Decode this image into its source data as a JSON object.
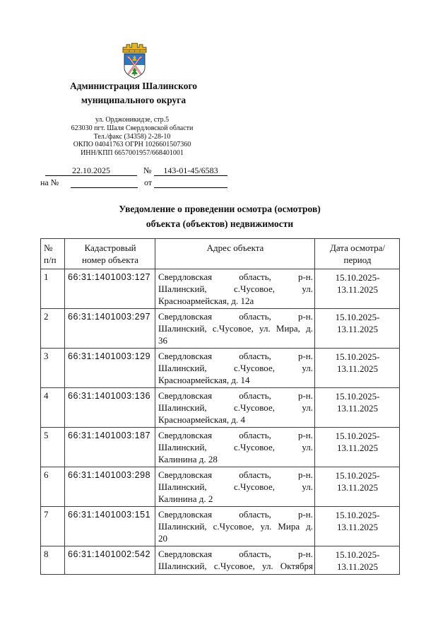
{
  "org": {
    "name_lines": [
      "Администрация Шалинского",
      "муниципального округа"
    ],
    "address_lines": [
      "ул. Орджоникидзе, стр.5",
      "623030 пгт. Шаля Свердловской области",
      "Тел./факс (34358) 2-28-10",
      "ОКПО 04041763 ОГРН 1026601507360",
      "ИНН/КПП 6657001957/668401001"
    ],
    "emblem_colors": {
      "crown": "#e6b41e",
      "crown_outline": "#5d4a05",
      "shield_top": "#2f77c1",
      "shield_bottom": "#ffffff",
      "shield_outline": "#2b2b2b",
      "arrows_red": "#c23326",
      "arrows_white": "#ffffff",
      "fir_green": "#2a8a2a",
      "ornament_gold": "#e6b41e"
    }
  },
  "letter_meta": {
    "date": "22.10.2025",
    "number_label": "№",
    "number": "143-01-45/6583",
    "reply_to_label": "на №",
    "reply_from_label": "от"
  },
  "title_lines": [
    "Уведомление о проведении осмотра (осмотров)",
    "объекта (объектов) недвижимости"
  ],
  "table": {
    "headers": {
      "num_lines": [
        "№",
        "п/п"
      ],
      "cadastral_lines": [
        "Кадастровый",
        "номер объекта"
      ],
      "address": "Адрес объекта",
      "date_lines": [
        "Дата осмотра/",
        "период"
      ]
    },
    "rows": [
      {
        "num": "1",
        "cadastral": "66:31:1401003:127",
        "address_lines": [
          "Свердловская область, р-н.",
          "Шалинский, с.Чусовое, ул.",
          "Красноармейская, д. 12а"
        ],
        "justify_all": false,
        "date_lines": [
          "15.10.2025-",
          "13.11.2025"
        ]
      },
      {
        "num": "2",
        "cadastral": "66:31:1401003:297",
        "address_lines": [
          "Свердловская область, р-н.",
          "Шалинский, с.Чусовое, ул. Мира, д.",
          "36"
        ],
        "justify_all": false,
        "date_lines": [
          "15.10.2025-",
          "13.11.2025"
        ]
      },
      {
        "num": "3",
        "cadastral": "66:31:1401003:129",
        "address_lines": [
          "Свердловская область, р-н.",
          "Шалинский, с.Чусовое, ул.",
          "Красноармейская, д. 14"
        ],
        "justify_all": false,
        "date_lines": [
          "15.10.2025-",
          "13.11.2025"
        ]
      },
      {
        "num": "4",
        "cadastral": "66:31:1401003:136",
        "address_lines": [
          "Свердловская область, р-н.",
          "Шалинский, с.Чусовое, ул.",
          "Красноармейская, д. 4"
        ],
        "justify_all": false,
        "date_lines": [
          "15.10.2025-",
          "13.11.2025"
        ]
      },
      {
        "num": "5",
        "cadastral": "66:31:1401003:187",
        "address_lines": [
          "Свердловская область, р-н.",
          "Шалинский, с.Чусовое, ул.",
          "Калинина д. 28"
        ],
        "justify_all": false,
        "date_lines": [
          "15.10.2025-",
          "13.11.2025"
        ]
      },
      {
        "num": "6",
        "cadastral": "66:31:1401003:298",
        "address_lines": [
          "Свердловская область, р-н.",
          "Шалинский, с.Чусовое, ул.",
          "Калинина д. 2"
        ],
        "justify_all": false,
        "date_lines": [
          "15.10.2025-",
          "13.11.2025"
        ]
      },
      {
        "num": "7",
        "cadastral": "66:31:1401003:151",
        "address_lines": [
          "Свердловская область, р-н.",
          "Шалинский, с.Чусовое, ул. Мира д.",
          "20"
        ],
        "justify_all": false,
        "date_lines": [
          "15.10.2025-",
          "13.11.2025"
        ]
      },
      {
        "num": "8",
        "cadastral": "66:31:1401002:542",
        "address_lines": [
          "Свердловская область, р-н.",
          "Шалинский, с.Чусовое, ул. Октября"
        ],
        "justify_all": true,
        "date_lines": [
          "15.10.2025-",
          "13.11.2025"
        ]
      }
    ]
  }
}
